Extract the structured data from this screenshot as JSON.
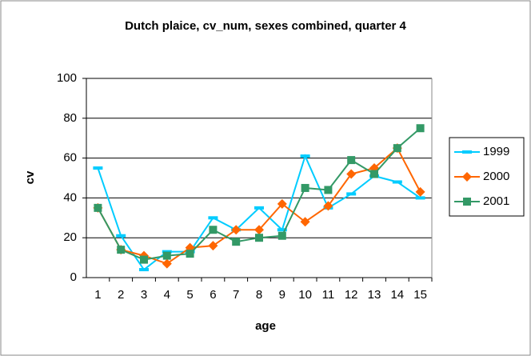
{
  "chart_data": {
    "type": "line",
    "title": "Dutch plaice, cv_num, sexes combined, quarter 4",
    "x_label": "age",
    "y_label": "cv",
    "categories": [
      "1",
      "2",
      "3",
      "4",
      "5",
      "6",
      "7",
      "8",
      "9",
      "10",
      "11",
      "12",
      "13",
      "14",
      "15"
    ],
    "series": [
      {
        "name": "1999",
        "color": "#00ccff",
        "marker": "dash",
        "values": [
          55,
          21,
          4,
          13,
          13,
          30,
          24,
          35,
          24,
          61,
          35,
          42,
          51,
          48,
          40
        ]
      },
      {
        "name": "2000",
        "color": "#ff6600",
        "marker": "diamond",
        "values": [
          35,
          14,
          11,
          7,
          15,
          16,
          24,
          24,
          37,
          28,
          36,
          52,
          55,
          65,
          43
        ]
      },
      {
        "name": "2001",
        "color": "#339966",
        "marker": "square",
        "values": [
          35,
          14,
          9,
          11,
          12,
          24,
          18,
          20,
          21,
          45,
          44,
          59,
          52,
          65,
          75
        ]
      }
    ],
    "ylim": [
      0,
      100
    ],
    "yticks": [
      0,
      20,
      40,
      60,
      80,
      100
    ],
    "grid": true,
    "legend": "right"
  }
}
